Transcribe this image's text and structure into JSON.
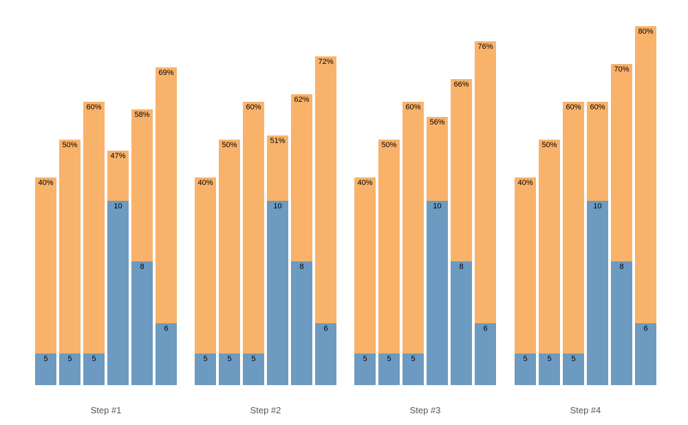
{
  "page": {
    "background": "#ffffff"
  },
  "colors": {
    "base_segment": "#6d9ac1",
    "top_segment": "#f9b26a",
    "bar_label": "#000000",
    "group_label": "#555555"
  },
  "chart_data": {
    "type": "bar",
    "variant": "grouped-stacked",
    "title": "",
    "xlabel": "",
    "ylabel": "",
    "grid": false,
    "legend": false,
    "axes_visible": false,
    "stack_order": [
      "base-value (blue, bottom)",
      "remainder (orange, top)"
    ],
    "groups": [
      {
        "label": "Step #1",
        "bars": [
          {
            "value": 5,
            "value_label": "5",
            "percent": 40,
            "percent_label": "40%"
          },
          {
            "value": 5,
            "value_label": "5",
            "percent": 50,
            "percent_label": "50%"
          },
          {
            "value": 5,
            "value_label": "5",
            "percent": 60,
            "percent_label": "60%"
          },
          {
            "value": 10,
            "value_label": "10",
            "percent": 47,
            "percent_label": "47%"
          },
          {
            "value": 8,
            "value_label": "8",
            "percent": 58,
            "percent_label": "58%"
          },
          {
            "value": 6,
            "value_label": "6",
            "percent": 69,
            "percent_label": "69%"
          }
        ]
      },
      {
        "label": "Step #2",
        "bars": [
          {
            "value": 5,
            "value_label": "5",
            "percent": 40,
            "percent_label": "40%"
          },
          {
            "value": 5,
            "value_label": "5",
            "percent": 50,
            "percent_label": "50%"
          },
          {
            "value": 5,
            "value_label": "5",
            "percent": 60,
            "percent_label": "60%"
          },
          {
            "value": 10,
            "value_label": "10",
            "percent": 51,
            "percent_label": "51%"
          },
          {
            "value": 8,
            "value_label": "8",
            "percent": 62,
            "percent_label": "62%"
          },
          {
            "value": 6,
            "value_label": "6",
            "percent": 72,
            "percent_label": "72%"
          }
        ]
      },
      {
        "label": "Step #3",
        "bars": [
          {
            "value": 5,
            "value_label": "5",
            "percent": 40,
            "percent_label": "40%"
          },
          {
            "value": 5,
            "value_label": "5",
            "percent": 50,
            "percent_label": "50%"
          },
          {
            "value": 5,
            "value_label": "5",
            "percent": 60,
            "percent_label": "60%"
          },
          {
            "value": 10,
            "value_label": "10",
            "percent": 56,
            "percent_label": "56%"
          },
          {
            "value": 8,
            "value_label": "8",
            "percent": 66,
            "percent_label": "66%"
          },
          {
            "value": 6,
            "value_label": "6",
            "percent": 76,
            "percent_label": "76%"
          }
        ]
      },
      {
        "label": "Step #4",
        "bars": [
          {
            "value": 5,
            "value_label": "5",
            "percent": 40,
            "percent_label": "40%"
          },
          {
            "value": 5,
            "value_label": "5",
            "percent": 50,
            "percent_label": "50%"
          },
          {
            "value": 5,
            "value_label": "5",
            "percent": 60,
            "percent_label": "60%"
          },
          {
            "value": 10,
            "value_label": "10",
            "percent": 60,
            "percent_label": "60%"
          },
          {
            "value": 8,
            "value_label": "8",
            "percent": 70,
            "percent_label": "70%"
          },
          {
            "value": 6,
            "value_label": "6",
            "percent": 80,
            "percent_label": "80%"
          }
        ]
      }
    ]
  }
}
